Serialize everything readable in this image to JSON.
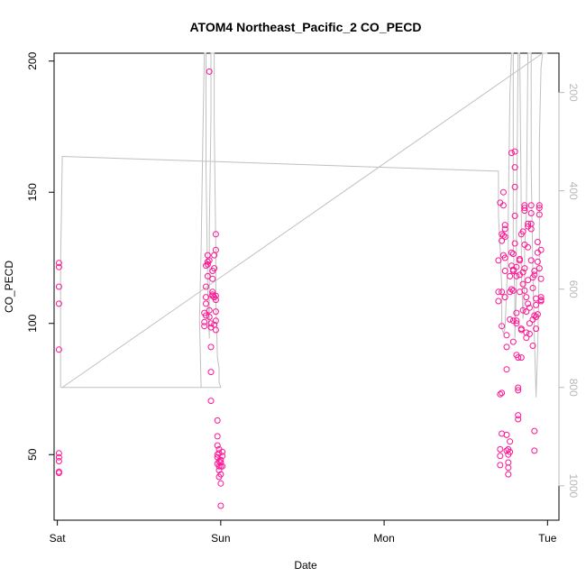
{
  "chart_data": {
    "type": "scatter",
    "title": "ATOM4 Northeast_Pacific_2 CO_PECD",
    "xlabel": "Date",
    "ylabel": "CO_PECD",
    "x_unit": "day",
    "xlim": [
      -0.02,
      3.07
    ],
    "ylim": [
      25,
      203
    ],
    "x_ticks": [
      {
        "value": 0,
        "label": "Sat"
      },
      {
        "value": 1,
        "label": "Sun"
      },
      {
        "value": 2,
        "label": "Mon"
      },
      {
        "value": 3,
        "label": "Tue"
      }
    ],
    "y_ticks": [
      50,
      100,
      150,
      200
    ],
    "y2_ticks": [
      200,
      400,
      600,
      800,
      1000
    ],
    "y2_lim": [
      120,
      1070
    ],
    "y2_reversed": true,
    "grid": false,
    "colors": {
      "points": "#ff1493",
      "pressure_line": "#c0c0c0",
      "axis": "#000000",
      "right_axis": "#b8b8b8"
    },
    "series": [
      {
        "values": [
          [
            0.01,
            123
          ],
          [
            0.01,
            121.5
          ],
          [
            0.01,
            114
          ],
          [
            0.01,
            107.5
          ],
          [
            0.01,
            90
          ],
          [
            0.01,
            50.5
          ],
          [
            0.01,
            49
          ],
          [
            0.01,
            47.5
          ],
          [
            0.01,
            43.5
          ],
          [
            0.01,
            43
          ],
          [
            0.9,
            99
          ],
          [
            0.9,
            100.5
          ],
          [
            0.9,
            104
          ],
          [
            0.91,
            103
          ],
          [
            0.91,
            107.5
          ],
          [
            0.91,
            110
          ],
          [
            0.91,
            114
          ],
          [
            0.91,
            122
          ],
          [
            0.92,
            118
          ],
          [
            0.92,
            123.5
          ],
          [
            0.92,
            126
          ],
          [
            0.92,
            122.5
          ],
          [
            0.93,
            124
          ],
          [
            0.93,
            196
          ],
          [
            0.93,
            105
          ],
          [
            0.93,
            102.5
          ],
          [
            0.94,
            100
          ],
          [
            0.94,
            98.5
          ],
          [
            0.94,
            91
          ],
          [
            0.94,
            81.5
          ],
          [
            0.94,
            70.5
          ],
          [
            0.95,
            110.5
          ],
          [
            0.95,
            120
          ],
          [
            0.95,
            117
          ],
          [
            0.95,
            111
          ],
          [
            0.95,
            112
          ],
          [
            0.96,
            110
          ],
          [
            0.96,
            121
          ],
          [
            0.96,
            126
          ],
          [
            0.96,
            99.5
          ],
          [
            0.97,
            128
          ],
          [
            0.97,
            134
          ],
          [
            0.97,
            110.5
          ],
          [
            0.97,
            101
          ],
          [
            0.97,
            97.5
          ],
          [
            0.97,
            109
          ],
          [
            0.97,
            104.5
          ],
          [
            0.98,
            63
          ],
          [
            0.98,
            57
          ],
          [
            0.98,
            53.5
          ],
          [
            0.98,
            50
          ],
          [
            0.98,
            49
          ],
          [
            0.98,
            46.5
          ],
          [
            0.99,
            47.5
          ],
          [
            0.99,
            45.5
          ],
          [
            0.99,
            52
          ],
          [
            0.99,
            50.5
          ],
          [
            0.99,
            44
          ],
          [
            0.99,
            41.5
          ],
          [
            1.0,
            42.5
          ],
          [
            1.0,
            45.5
          ],
          [
            1.0,
            48
          ],
          [
            1.0,
            39
          ],
          [
            1.0,
            47
          ],
          [
            1.01,
            49.5
          ],
          [
            1.01,
            45.5
          ],
          [
            1.01,
            51
          ],
          [
            1.0,
            30.5
          ],
          [
            2.7,
            124
          ],
          [
            2.7,
            108.5
          ],
          [
            2.7,
            112
          ],
          [
            2.71,
            146
          ],
          [
            2.71,
            73
          ],
          [
            2.71,
            52
          ],
          [
            2.71,
            49.5
          ],
          [
            2.71,
            46
          ],
          [
            2.72,
            73.5
          ],
          [
            2.72,
            58
          ],
          [
            2.72,
            99
          ],
          [
            2.72,
            112
          ],
          [
            2.72,
            131.5
          ],
          [
            2.72,
            134
          ],
          [
            2.73,
            150
          ],
          [
            2.73,
            145
          ],
          [
            2.73,
            133.5
          ],
          [
            2.73,
            126
          ],
          [
            2.74,
            136
          ],
          [
            2.74,
            137.5
          ],
          [
            2.74,
            133
          ],
          [
            2.74,
            125
          ],
          [
            2.74,
            120
          ],
          [
            2.74,
            110
          ],
          [
            2.75,
            95.5
          ],
          [
            2.75,
            91
          ],
          [
            2.75,
            82.5
          ],
          [
            2.75,
            57.5
          ],
          [
            2.75,
            51.5
          ],
          [
            2.76,
            52
          ],
          [
            2.76,
            50
          ],
          [
            2.76,
            47
          ],
          [
            2.76,
            45
          ],
          [
            2.76,
            42.5
          ],
          [
            2.77,
            51
          ],
          [
            2.77,
            55
          ],
          [
            2.77,
            118
          ],
          [
            2.77,
            112
          ],
          [
            2.77,
            101.5
          ],
          [
            2.78,
            165
          ],
          [
            2.78,
            127
          ],
          [
            2.78,
            122
          ],
          [
            2.78,
            113
          ],
          [
            2.79,
            126.5
          ],
          [
            2.79,
            120.5
          ],
          [
            2.79,
            120
          ],
          [
            2.79,
            112.5
          ],
          [
            2.79,
            101
          ],
          [
            2.79,
            93
          ],
          [
            2.8,
            165.5
          ],
          [
            2.8,
            159.5
          ],
          [
            2.8,
            152
          ],
          [
            2.8,
            141
          ],
          [
            2.8,
            130.5
          ],
          [
            2.81,
            121.5
          ],
          [
            2.81,
            118
          ],
          [
            2.81,
            104
          ],
          [
            2.81,
            101
          ],
          [
            2.81,
            100
          ],
          [
            2.81,
            88
          ],
          [
            2.82,
            87
          ],
          [
            2.82,
            75.5
          ],
          [
            2.82,
            74.5
          ],
          [
            2.82,
            65
          ],
          [
            2.82,
            63.5
          ],
          [
            2.83,
            124.5
          ],
          [
            2.83,
            124
          ],
          [
            2.83,
            118.5
          ],
          [
            2.83,
            112
          ],
          [
            2.84,
            98
          ],
          [
            2.84,
            97.5
          ],
          [
            2.84,
            87
          ],
          [
            2.84,
            134
          ],
          [
            2.85,
            135
          ],
          [
            2.85,
            119.5
          ],
          [
            2.85,
            115
          ],
          [
            2.85,
            105
          ],
          [
            2.86,
            143
          ],
          [
            2.86,
            145
          ],
          [
            2.86,
            144
          ],
          [
            2.86,
            130
          ],
          [
            2.86,
            121
          ],
          [
            2.86,
            112.5
          ],
          [
            2.87,
            110
          ],
          [
            2.87,
            104.5
          ],
          [
            2.87,
            96.5
          ],
          [
            2.87,
            94.5
          ],
          [
            2.88,
            138
          ],
          [
            2.88,
            137
          ],
          [
            2.88,
            129
          ],
          [
            2.88,
            116.5
          ],
          [
            2.88,
            107.5
          ],
          [
            2.89,
            106
          ],
          [
            2.89,
            100
          ],
          [
            2.89,
            96
          ],
          [
            2.9,
            145
          ],
          [
            2.9,
            142
          ],
          [
            2.9,
            138
          ],
          [
            2.9,
            136
          ],
          [
            2.9,
            124
          ],
          [
            2.91,
            117.5
          ],
          [
            2.91,
            113.5
          ],
          [
            2.91,
            101.5
          ],
          [
            2.91,
            91.5
          ],
          [
            2.92,
            120
          ],
          [
            2.92,
            118.5
          ],
          [
            2.92,
            103
          ],
          [
            2.92,
            59
          ],
          [
            2.92,
            51.5
          ],
          [
            2.93,
            109.5
          ],
          [
            2.93,
            107
          ],
          [
            2.93,
            102.5
          ],
          [
            2.93,
            98
          ],
          [
            2.94,
            131
          ],
          [
            2.94,
            127
          ],
          [
            2.94,
            123.5
          ],
          [
            2.94,
            103.5
          ],
          [
            2.95,
            145
          ],
          [
            2.95,
            144
          ],
          [
            2.95,
            141.5
          ],
          [
            2.95,
            121
          ],
          [
            2.96,
            128
          ],
          [
            2.96,
            117
          ],
          [
            2.96,
            110
          ],
          [
            2.96,
            108.5
          ],
          [
            2.96,
            109
          ]
        ]
      },
      {
        "name": "pressure",
        "axis": "right",
        "points": [
          [
            0.02,
            800
          ],
          [
            0.02,
            550
          ],
          [
            0.03,
            330
          ],
          [
            2.7,
            360
          ],
          [
            2.7,
            450
          ],
          [
            2.71,
            520
          ],
          [
            2.72,
            600
          ],
          [
            2.72,
            680
          ],
          [
            2.73,
            690
          ],
          [
            2.74,
            680
          ],
          [
            2.75,
            600
          ],
          [
            2.76,
            520
          ],
          [
            2.76,
            450
          ],
          [
            2.77,
            200
          ],
          [
            2.78,
            120
          ],
          [
            2.79,
            120
          ],
          [
            2.79,
            500
          ],
          [
            2.8,
            620
          ],
          [
            2.8,
            700
          ],
          [
            2.81,
            590
          ],
          [
            2.81,
            470
          ],
          [
            2.82,
            120
          ],
          [
            2.82,
            120
          ],
          [
            2.83,
            120
          ],
          [
            2.84,
            460
          ],
          [
            2.84,
            560
          ],
          [
            2.85,
            660
          ],
          [
            2.86,
            590
          ],
          [
            2.86,
            520
          ],
          [
            2.87,
            450
          ],
          [
            2.88,
            120
          ],
          [
            2.89,
            120
          ],
          [
            2.9,
            120
          ],
          [
            2.9,
            350
          ],
          [
            2.91,
            560
          ],
          [
            2.92,
            700
          ],
          [
            2.93,
            820
          ],
          [
            2.93,
            820
          ],
          [
            2.94,
            720
          ],
          [
            2.95,
            540
          ],
          [
            2.95,
            300
          ],
          [
            2.96,
            150
          ],
          [
            2.97,
            120
          ],
          [
            3.0,
            120
          ],
          [
            2.97,
            120
          ],
          [
            0.03,
            800
          ],
          [
            0.02,
            800
          ],
          [
            0.9,
            800
          ],
          [
            0.88,
            800
          ],
          [
            0.87,
            660
          ],
          [
            0.88,
            520
          ],
          [
            0.89,
            300
          ],
          [
            0.9,
            120
          ],
          [
            0.91,
            120
          ],
          [
            0.91,
            350
          ],
          [
            0.92,
            600
          ],
          [
            0.93,
            700
          ],
          [
            0.93,
            680
          ],
          [
            0.93,
            480
          ],
          [
            0.94,
            250
          ],
          [
            0.94,
            120
          ],
          [
            0.95,
            120
          ],
          [
            0.96,
            120
          ],
          [
            0.96,
            260
          ],
          [
            0.97,
            520
          ],
          [
            0.97,
            620
          ],
          [
            0.98,
            740
          ],
          [
            0.99,
            760
          ],
          [
            0.99,
            790
          ],
          [
            1.0,
            800
          ],
          [
            0.03,
            800
          ]
        ]
      }
    ]
  }
}
